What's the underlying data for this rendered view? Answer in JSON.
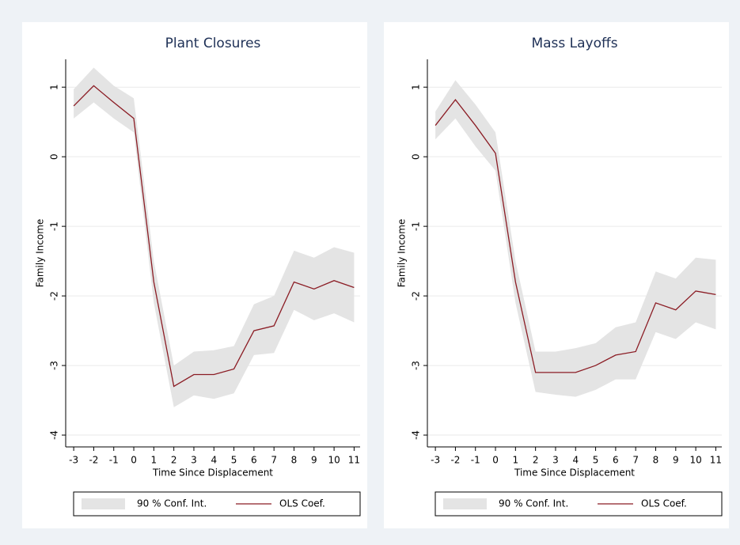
{
  "chart_data": [
    {
      "type": "line",
      "title": "Plant Closures",
      "x_label": "Time Since Displacement",
      "y_label": "Family Income",
      "x": [
        -3,
        -2,
        -1,
        0,
        1,
        2,
        3,
        4,
        5,
        6,
        7,
        8,
        9,
        10,
        11
      ],
      "xlim": [
        -3.4,
        11.3
      ],
      "xticks": [
        -3,
        -2,
        -1,
        0,
        1,
        2,
        3,
        4,
        5,
        6,
        7,
        8,
        9,
        10,
        11
      ],
      "ylim": [
        -4.17,
        1.4
      ],
      "yticks": [
        -4,
        -3,
        -2,
        -1,
        0,
        1
      ],
      "grid": true,
      "series": [
        {
          "name": "90 % Conf. Int.",
          "color": "#e4e4e4",
          "upper": [
            0.97,
            1.28,
            1.02,
            0.84,
            -1.5,
            -3.0,
            -2.8,
            -2.78,
            -2.72,
            -2.12,
            -2.0,
            -1.35,
            -1.45,
            -1.3,
            -1.38
          ],
          "lower": [
            0.55,
            0.78,
            0.55,
            0.35,
            -2.1,
            -3.6,
            -3.43,
            -3.48,
            -3.4,
            -2.85,
            -2.82,
            -2.2,
            -2.35,
            -2.25,
            -2.38
          ]
        },
        {
          "name": "OLS Coef.",
          "color": "#8b1c24",
          "values": [
            0.73,
            1.02,
            0.78,
            0.55,
            -1.8,
            -3.3,
            -3.13,
            -3.13,
            -3.05,
            -2.5,
            -2.43,
            -1.8,
            -1.9,
            -1.78,
            -1.88
          ]
        }
      ]
    },
    {
      "type": "line",
      "title": "Mass Layoffs",
      "x_label": "Time Since Displacement",
      "y_label": "Family Income",
      "x": [
        -3,
        -2,
        -1,
        0,
        1,
        2,
        3,
        4,
        5,
        6,
        7,
        8,
        9,
        10,
        11
      ],
      "xlim": [
        -3.4,
        11.3
      ],
      "xticks": [
        -3,
        -2,
        -1,
        0,
        1,
        2,
        3,
        4,
        5,
        6,
        7,
        8,
        9,
        10,
        11
      ],
      "ylim": [
        -4.17,
        1.4
      ],
      "yticks": [
        -4,
        -3,
        -2,
        -1,
        0,
        1
      ],
      "grid": true,
      "series": [
        {
          "name": "90 % Conf. Int.",
          "color": "#e4e4e4",
          "upper": [
            0.65,
            1.1,
            0.75,
            0.35,
            -1.5,
            -2.8,
            -2.8,
            -2.75,
            -2.68,
            -2.45,
            -2.38,
            -1.65,
            -1.75,
            -1.45,
            -1.48
          ],
          "lower": [
            0.25,
            0.55,
            0.15,
            -0.2,
            -2.1,
            -3.38,
            -3.42,
            -3.45,
            -3.35,
            -3.2,
            -3.2,
            -2.52,
            -2.62,
            -2.38,
            -2.48
          ]
        },
        {
          "name": "OLS Coef.",
          "color": "#8b1c24",
          "values": [
            0.45,
            0.82,
            0.45,
            0.05,
            -1.8,
            -3.1,
            -3.1,
            -3.1,
            -3.0,
            -2.85,
            -2.8,
            -2.1,
            -2.2,
            -1.93,
            -1.98
          ]
        }
      ]
    }
  ]
}
